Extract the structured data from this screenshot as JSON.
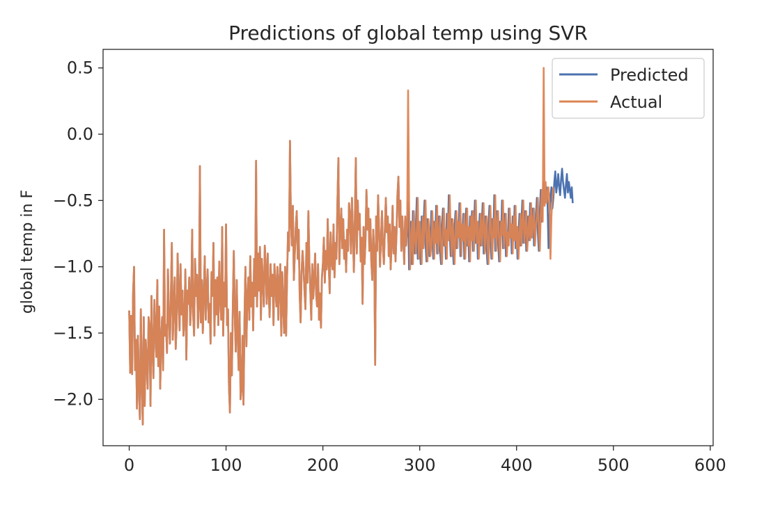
{
  "chart_data": {
    "type": "line",
    "title": "Predictions of global temp using SVR",
    "xlabel": "",
    "ylabel": "global temp in F",
    "xlim": [
      -27,
      603
    ],
    "ylim": [
      -2.35,
      0.64
    ],
    "xticks": [
      0,
      100,
      200,
      300,
      400,
      500,
      600
    ],
    "xtick_labels": [
      "0",
      "100",
      "200",
      "300",
      "400",
      "500",
      "600"
    ],
    "yticks": [
      0.5,
      0.0,
      -0.5,
      -1.0,
      -1.5,
      -2.0
    ],
    "ytick_labels": [
      "0.5",
      "0.0",
      "−0.5",
      "−1.0",
      "−1.5",
      "−2.0"
    ],
    "grid": false,
    "legend_position": "top-right",
    "series": [
      {
        "name": "Predicted",
        "color": "#4c72b0",
        "x_start": 0,
        "values": [
          -1.33,
          -1.8,
          -1.37,
          -1.81,
          -1.2,
          -1.0,
          -1.78,
          -1.55,
          -2.07,
          -1.52,
          -1.9,
          -2.15,
          -1.32,
          -1.85,
          -2.19,
          -1.38,
          -2.05,
          -1.55,
          -1.7,
          -1.92,
          -1.38,
          -1.45,
          -2.05,
          -1.22,
          -1.62,
          -1.84,
          -1.25,
          -1.48,
          -1.68,
          -1.1,
          -1.75,
          -1.3,
          -1.92,
          -1.55,
          -1.38,
          -1.78,
          -0.72,
          -1.52,
          -1.44,
          -1.65,
          -1.02,
          -1.38,
          -1.58,
          -1.24,
          -0.82,
          -1.55,
          -1.3,
          -1.08,
          -1.62,
          -1.42,
          -0.9,
          -1.22,
          -1.48,
          -0.98,
          -1.36,
          -1.18,
          -1.52,
          -1.4,
          -1.02,
          -1.7,
          -1.18,
          -1.28,
          -1.08,
          -1.44,
          -1.28,
          -0.72,
          -1.36,
          -1.52,
          -0.94,
          -1.22,
          -1.06,
          -1.46,
          -1.3,
          -0.24,
          -1.42,
          -1.1,
          -1.5,
          -1.22,
          -0.92,
          -1.4,
          -1.18,
          -1.02,
          -1.42,
          -1.28,
          -1.58,
          -1.04,
          -1.22,
          -0.82,
          -1.52,
          -1.1,
          -1.36,
          -1.08,
          -1.44,
          -0.96,
          -1.24,
          -1.4,
          -0.7,
          -1.52,
          -1.12,
          -1.3,
          -0.68,
          -1.44,
          -1.32,
          -1.9,
          -2.1,
          -1.5,
          -1.82,
          -1.3,
          -0.88,
          -1.36,
          -1.64,
          -1.1,
          -1.52,
          -1.78,
          -1.34,
          -2.0,
          -1.92,
          -1.52,
          -2.04,
          -1.42,
          -1.0,
          -1.6,
          -1.22,
          -1.08,
          -1.4,
          -0.92,
          -1.3,
          -1.12,
          -1.48,
          -0.94,
          -1.22,
          -0.2,
          -1.3,
          -0.9,
          -1.18,
          -0.85,
          -1.4,
          -0.94,
          -1.12,
          -1.3,
          -0.84,
          -1.02,
          -1.28,
          -0.9,
          -1.18,
          -1.38,
          -0.98,
          -1.22,
          -1.06,
          -1.44,
          -0.98,
          -1.14,
          -1.3,
          -1.0,
          -1.4,
          -1.12,
          -0.98,
          -1.52,
          -1.04,
          -1.3,
          -1.5,
          -1.0,
          -1.52,
          -1.08,
          -0.74,
          -0.88,
          -0.05,
          -0.66,
          -0.84,
          -0.54,
          -1.1,
          -0.9,
          -0.7,
          -0.58,
          -0.94,
          -0.72,
          -1.2,
          -1.42,
          -1.04,
          -0.88,
          -1.0,
          -1.18,
          -1.32,
          -0.82,
          -1.12,
          -0.58,
          -0.96,
          -1.18,
          -1.4,
          -0.98,
          -1.24,
          -1.1,
          -0.9,
          -1.2,
          -1.3,
          -0.98,
          -1.4,
          -1.2,
          -1.46,
          -1.08,
          -0.98,
          -0.78,
          -1.12,
          -0.88,
          -1.02,
          -0.64,
          -0.96,
          -1.2,
          -0.74,
          -0.95,
          -1.02,
          -0.68,
          -1.08,
          -0.82,
          -0.94,
          -0.52,
          -0.18,
          -0.98,
          -0.72,
          -0.56,
          -0.86,
          -0.64,
          -0.94,
          -0.8,
          -1.04,
          -0.72,
          -0.88,
          -0.52,
          -0.62,
          -0.9,
          -0.48,
          -0.74,
          -1.04,
          -0.66,
          -0.18,
          -0.9,
          -0.5,
          -0.72,
          -0.6,
          -0.96,
          -0.78,
          -1.28,
          -0.7,
          -0.98,
          -0.8,
          -0.42,
          -0.72,
          -0.56,
          -0.88,
          -0.64,
          -0.96,
          -1.1,
          -0.72,
          -0.88,
          -1.74,
          -0.62,
          -0.88,
          -0.46,
          -0.72,
          -1.0,
          -0.8,
          -0.58,
          -0.86,
          -0.98,
          -0.72,
          -0.48,
          -0.74,
          -0.62,
          -0.92,
          -0.68,
          -1.02,
          -0.8,
          -0.54,
          -0.9,
          -0.7,
          -0.96,
          -0.76,
          -0.46,
          -0.32,
          -0.7,
          -0.5,
          -0.88,
          -0.62,
          -0.8,
          -0.98,
          -0.62,
          -0.84,
          -0.7,
          -0.52,
          -1.02,
          -0.82,
          -0.66,
          -0.98,
          -0.58,
          -0.76,
          -0.9,
          -0.72,
          -0.48,
          -0.94,
          -0.66,
          -0.8,
          -0.98,
          -0.62,
          -0.86,
          -0.68,
          -0.5,
          -0.82,
          -0.96,
          -0.64,
          -0.74,
          -0.92,
          -0.84,
          -0.58,
          -0.76,
          -0.94,
          -0.66,
          -0.82,
          -0.54,
          -0.9,
          -0.76,
          -0.62,
          -0.88,
          -0.98,
          -0.7,
          -0.56,
          -0.84,
          -0.72,
          -0.94,
          -0.6,
          -0.8,
          -0.46,
          -0.74,
          -0.92,
          -0.64,
          -0.82,
          -0.98,
          -0.7,
          -0.58,
          -0.86,
          -0.66,
          -0.78,
          -0.52,
          -0.92,
          -0.68,
          -0.8,
          -0.6,
          -0.94,
          -0.74,
          -0.56,
          -0.84,
          -0.7,
          -0.96,
          -0.62,
          -0.8,
          -0.58,
          -0.88,
          -0.72,
          -0.5,
          -0.82,
          -0.66,
          -0.94,
          -0.76,
          -0.6,
          -0.84,
          -0.7,
          -0.52,
          -0.9,
          -0.74,
          -0.62,
          -0.86,
          -0.98,
          -0.68,
          -0.54,
          -0.8,
          -0.94,
          -0.64,
          -0.78,
          -0.46,
          -0.88,
          -0.7,
          -0.58,
          -0.82,
          -0.96,
          -0.66,
          -0.76,
          -0.5,
          -0.86,
          -0.72,
          -0.6,
          -0.92,
          -0.74,
          -0.84,
          -0.56,
          -0.78,
          -0.68,
          -0.9,
          -0.62,
          -0.8,
          -0.54,
          -0.86,
          -0.7,
          -0.94,
          -0.76,
          -0.6,
          -0.84,
          -0.66,
          -0.5,
          -0.82,
          -0.72,
          -0.58,
          -0.88,
          -0.74,
          -0.62,
          -0.8,
          -0.52,
          -0.78,
          -0.68,
          -0.56,
          -0.84,
          -0.7,
          -0.62,
          -0.48,
          -0.74,
          -0.88,
          -0.6,
          -0.42,
          -0.66,
          -0.54,
          -0.36,
          -0.52,
          -0.44,
          -0.4,
          -0.52,
          -0.86,
          -0.62,
          -0.48,
          -0.4,
          -0.56,
          -0.48,
          -0.36,
          -0.28,
          -0.44,
          -0.38,
          -0.3,
          -0.4,
          -0.46,
          -0.34,
          -0.26,
          -0.36,
          -0.42,
          -0.48,
          -0.38,
          -0.3,
          -0.44,
          -0.36,
          -0.42,
          -0.48,
          -0.4,
          -0.52
        ],
        "x_end_label_note": ""
      },
      {
        "name": "Actual",
        "color": "#dd8452",
        "x_start": 0,
        "values": [
          -1.33,
          -1.8,
          -1.37,
          -1.81,
          -1.2,
          -1.0,
          -1.78,
          -1.55,
          -2.07,
          -1.52,
          -1.9,
          -2.15,
          -1.32,
          -1.85,
          -2.19,
          -1.38,
          -2.05,
          -1.55,
          -1.7,
          -1.92,
          -1.38,
          -1.45,
          -2.05,
          -1.22,
          -1.62,
          -1.84,
          -1.25,
          -1.48,
          -1.68,
          -1.1,
          -1.75,
          -1.3,
          -1.92,
          -1.55,
          -1.38,
          -1.78,
          -0.72,
          -1.52,
          -1.44,
          -1.65,
          -1.02,
          -1.38,
          -1.58,
          -1.24,
          -0.82,
          -1.55,
          -1.3,
          -1.08,
          -1.62,
          -1.42,
          -0.9,
          -1.22,
          -1.48,
          -0.98,
          -1.36,
          -1.18,
          -1.52,
          -1.4,
          -1.02,
          -1.7,
          -1.18,
          -1.28,
          -1.08,
          -1.44,
          -1.28,
          -0.72,
          -1.36,
          -1.52,
          -0.94,
          -1.22,
          -1.06,
          -1.46,
          -1.3,
          -0.24,
          -1.42,
          -1.1,
          -1.5,
          -1.22,
          -0.92,
          -1.4,
          -1.18,
          -1.02,
          -1.42,
          -1.28,
          -1.58,
          -1.04,
          -1.22,
          -0.82,
          -1.52,
          -1.1,
          -1.36,
          -1.08,
          -1.44,
          -0.96,
          -1.24,
          -1.4,
          -0.7,
          -1.52,
          -1.12,
          -1.3,
          -0.68,
          -1.44,
          -1.32,
          -1.9,
          -2.1,
          -1.5,
          -1.82,
          -1.3,
          -0.88,
          -1.36,
          -1.64,
          -1.1,
          -1.52,
          -1.78,
          -1.34,
          -2.0,
          -1.92,
          -1.52,
          -2.04,
          -1.42,
          -1.0,
          -1.6,
          -1.22,
          -1.08,
          -1.4,
          -0.92,
          -1.3,
          -1.12,
          -1.48,
          -0.94,
          -1.22,
          -0.2,
          -1.3,
          -0.9,
          -1.18,
          -0.85,
          -1.4,
          -0.94,
          -1.12,
          -1.3,
          -0.84,
          -1.02,
          -1.28,
          -0.9,
          -1.18,
          -1.38,
          -0.98,
          -1.22,
          -1.06,
          -1.44,
          -0.98,
          -1.14,
          -1.3,
          -1.0,
          -1.4,
          -1.12,
          -0.98,
          -1.52,
          -1.04,
          -1.3,
          -1.5,
          -1.0,
          -1.52,
          -1.08,
          -0.74,
          -0.88,
          -0.05,
          -0.66,
          -0.84,
          -0.54,
          -1.1,
          -0.9,
          -0.7,
          -0.58,
          -0.94,
          -0.72,
          -1.2,
          -1.42,
          -1.04,
          -0.88,
          -1.0,
          -1.18,
          -1.32,
          -0.82,
          -1.12,
          -0.58,
          -0.96,
          -1.18,
          -1.4,
          -0.98,
          -1.24,
          -1.1,
          -0.9,
          -1.2,
          -1.3,
          -0.98,
          -1.4,
          -1.2,
          -1.46,
          -1.08,
          -0.98,
          -0.78,
          -1.12,
          -0.88,
          -1.02,
          -0.64,
          -0.96,
          -1.2,
          -0.74,
          -0.95,
          -1.02,
          -0.68,
          -1.08,
          -0.82,
          -0.94,
          -0.52,
          -0.18,
          -0.98,
          -0.72,
          -0.56,
          -0.86,
          -0.64,
          -0.94,
          -0.8,
          -1.04,
          -0.72,
          -0.88,
          -0.52,
          -0.62,
          -0.9,
          -0.48,
          -0.74,
          -1.04,
          -0.66,
          -0.18,
          -0.9,
          -0.5,
          -0.72,
          -0.6,
          -0.96,
          -0.78,
          -1.28,
          -0.7,
          -0.98,
          -0.8,
          -0.42,
          -0.72,
          -0.56,
          -0.88,
          -0.64,
          -0.96,
          -1.1,
          -0.72,
          -0.88,
          -1.74,
          -0.62,
          -0.88,
          -0.46,
          -0.72,
          -1.0,
          -0.8,
          -0.58,
          -0.86,
          -0.98,
          -0.72,
          -0.48,
          -0.74,
          -0.62,
          -0.92,
          -0.68,
          -1.02,
          -0.8,
          -0.54,
          -0.9,
          -0.7,
          -0.96,
          -0.76,
          -0.46,
          -0.32,
          -0.7,
          -0.5,
          -0.88,
          -0.62,
          -0.8,
          -0.98,
          -0.62,
          -0.84,
          -0.7,
          0.33,
          -0.52,
          -1.02,
          -0.82,
          -0.66,
          -0.98,
          -0.58,
          -0.76,
          -0.9,
          -0.72,
          -0.48,
          -0.94,
          -0.66,
          -0.8,
          -0.98,
          -0.62,
          -0.86,
          -0.68,
          -0.5,
          -0.82,
          -0.96,
          -0.64,
          -0.74,
          -0.92,
          -0.84,
          -0.58,
          -0.76,
          -0.94,
          -0.66,
          -0.82,
          -0.54,
          -0.9,
          -0.76,
          -0.62,
          -0.88,
          -0.98,
          -0.7,
          -0.56,
          -0.84,
          -0.72,
          -0.94,
          -0.6,
          -0.8,
          -0.46,
          -0.74,
          -0.92,
          -0.64,
          -0.82,
          -0.98,
          -0.7,
          -0.58,
          -0.86,
          -0.66,
          -0.78,
          -0.52,
          -0.92,
          -0.68,
          -0.8,
          -0.6,
          -0.94,
          -0.74,
          -0.56,
          -0.84,
          -0.7,
          -0.96,
          -0.62,
          -0.8,
          -0.58,
          -0.88,
          -0.72,
          -0.5,
          -0.82,
          -0.66,
          -0.94,
          -0.76,
          -0.6,
          -0.84,
          -0.7,
          -0.52,
          -0.9,
          -0.74,
          -0.62,
          -0.86,
          -0.98,
          -0.68,
          -0.54,
          -0.8,
          -0.94,
          -0.64,
          -0.78,
          -0.46,
          -0.88,
          -0.7,
          -0.58,
          -0.82,
          -0.96,
          -0.66,
          -0.76,
          -0.5,
          -0.86,
          -0.72,
          -0.6,
          -0.92,
          -0.74,
          -0.84,
          -0.56,
          -0.78,
          -0.68,
          -0.9,
          -0.62,
          -0.8,
          -0.54,
          -0.86,
          -0.7,
          -0.94,
          -0.76,
          -0.6,
          -0.84,
          -0.66,
          -0.5,
          -0.82,
          -0.72,
          -0.58,
          -0.88,
          -0.74,
          -0.62,
          -0.8,
          -0.52,
          -0.78,
          -0.68,
          -0.56,
          -0.84,
          -0.7,
          -0.62,
          -0.48,
          -0.74,
          -0.88,
          -0.6,
          -0.42,
          -0.66,
          0.5,
          -0.54,
          -0.36,
          -0.52,
          -0.44,
          -0.4,
          -0.52,
          -0.94,
          -0.62,
          -0.48,
          -0.4
        ]
      }
    ]
  }
}
